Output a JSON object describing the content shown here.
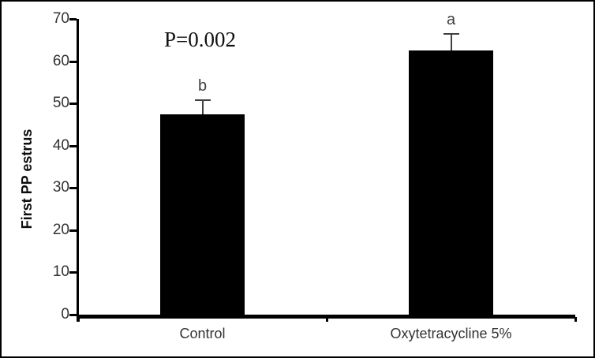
{
  "chart_data": {
    "type": "bar",
    "title": "",
    "categories": [
      "Control",
      "Oxytetracycline 5%"
    ],
    "values": [
      47.5,
      62.5
    ],
    "errors_plus": [
      3.2,
      4.0
    ],
    "bar_labels": [
      "b",
      "a"
    ],
    "annotation": "P=0.002",
    "xlabel": "",
    "ylabel": "First PP estrus",
    "ylim": [
      0,
      70
    ],
    "yticks": [
      0,
      10,
      20,
      30,
      40,
      50,
      60,
      70
    ],
    "grid": false,
    "legend": false,
    "bar_color": "#000000",
    "error_color": "#404040",
    "axis_color": "#000000",
    "text_color": "#333333",
    "frame_color": "#000000"
  }
}
